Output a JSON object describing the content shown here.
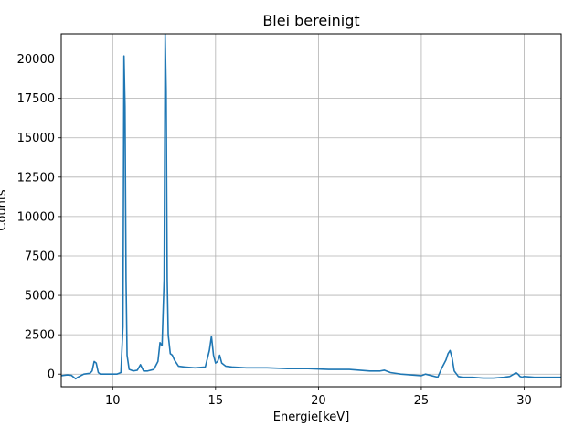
{
  "chart_data": {
    "type": "line",
    "title": "Blei bereinigt",
    "xlabel": "Energie[keV]",
    "ylabel": "Counts",
    "xlim": [
      7.5,
      31.8
    ],
    "ylim": [
      -800,
      21600
    ],
    "grid": true,
    "line_color": "#1f77b4",
    "x_ticks": [
      10,
      15,
      20,
      25,
      30
    ],
    "x_tick_labels": [
      "10",
      "15",
      "20",
      "25",
      "30"
    ],
    "y_ticks": [
      0,
      2500,
      5000,
      7500,
      10000,
      12500,
      15000,
      17500,
      20000
    ],
    "y_tick_labels": [
      "0",
      "2500",
      "5000",
      "7500",
      "10000",
      "12500",
      "15000",
      "17500",
      "20000"
    ],
    "series": [
      {
        "x": [
          7.5,
          7.8,
          8.0,
          8.2,
          8.3,
          8.6,
          8.9,
          9.0,
          9.1,
          9.2,
          9.3,
          9.4,
          9.8,
          10.2,
          10.4,
          10.5,
          10.55,
          10.6,
          10.65,
          10.7,
          10.8,
          11.0,
          11.2,
          11.35,
          11.5,
          11.7,
          12.0,
          12.2,
          12.3,
          12.4,
          12.5,
          12.55,
          12.6,
          12.65,
          12.7,
          12.8,
          12.9,
          13.0,
          13.2,
          13.5,
          14.0,
          14.5,
          14.7,
          14.8,
          14.9,
          15.0,
          15.1,
          15.2,
          15.3,
          15.5,
          15.8,
          16.5,
          17.5,
          18.5,
          19.5,
          20.5,
          21.0,
          21.5,
          22.0,
          22.5,
          23.0,
          23.2,
          23.5,
          24.0,
          24.5,
          25.0,
          25.2,
          25.5,
          25.8,
          26.0,
          26.2,
          26.3,
          26.4,
          26.5,
          26.6,
          26.8,
          27.0,
          27.5,
          28.0,
          28.5,
          29.0,
          29.3,
          29.5,
          29.6,
          29.7,
          29.8,
          29.9,
          30.0,
          30.5,
          31.0,
          31.8
        ],
        "y": [
          -100,
          -50,
          -80,
          -300,
          -200,
          0,
          50,
          200,
          800,
          700,
          100,
          0,
          0,
          0,
          100,
          3000,
          20200,
          17000,
          6000,
          1200,
          300,
          200,
          250,
          600,
          200,
          200,
          300,
          800,
          2000,
          1800,
          6000,
          21600,
          18000,
          6000,
          2500,
          1300,
          1200,
          900,
          500,
          450,
          400,
          450,
          1500,
          2400,
          1200,
          700,
          800,
          1200,
          700,
          500,
          450,
          400,
          400,
          350,
          350,
          300,
          300,
          300,
          250,
          200,
          200,
          250,
          100,
          0,
          -50,
          -100,
          0,
          -100,
          -200,
          400,
          900,
          1300,
          1500,
          1000,
          200,
          -150,
          -200,
          -200,
          -250,
          -250,
          -200,
          -150,
          0,
          100,
          0,
          -150,
          -200,
          -150,
          -200,
          -200,
          -200
        ]
      }
    ]
  }
}
